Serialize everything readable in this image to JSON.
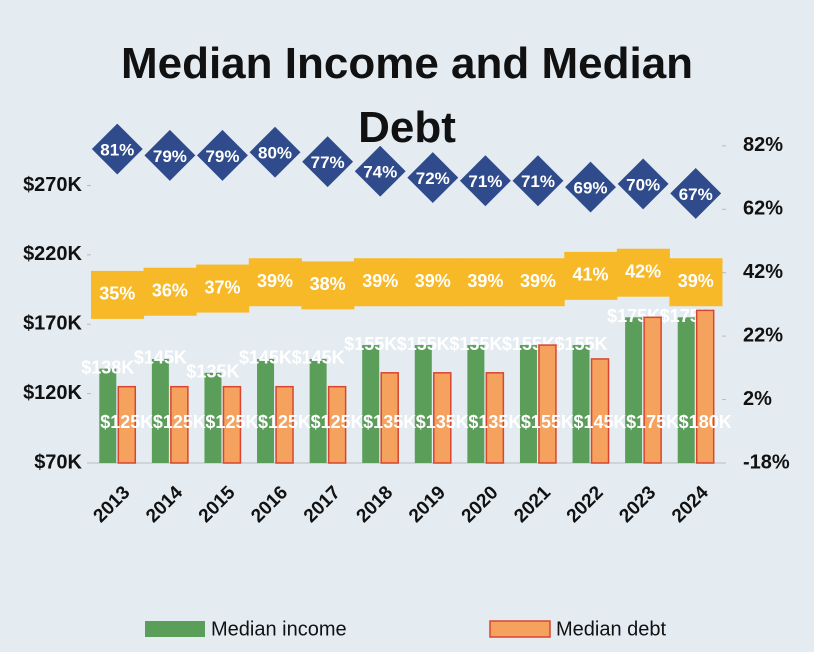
{
  "chart_data": {
    "type": "bar",
    "title": "Median Income and Median Debt",
    "categories": [
      "2013",
      "2014",
      "2015",
      "2016",
      "2017",
      "2018",
      "2019",
      "2020",
      "2021",
      "2022",
      "2023",
      "2024"
    ],
    "series": [
      {
        "name": "Median income",
        "color": "#5a9e5a",
        "values": [
          138000,
          145000,
          135000,
          145000,
          145000,
          155000,
          155000,
          155000,
          155000,
          155000,
          175000,
          175000
        ],
        "value_labels": [
          "$138K",
          "$145K",
          "$135K",
          "$145K",
          "$145K",
          "$155K",
          "$155K",
          "$155K",
          "$155K",
          "$155K",
          "$175K",
          "$175K"
        ]
      },
      {
        "name": "Median debt",
        "color": "#f4a25e",
        "values": [
          125000,
          125000,
          125000,
          125000,
          125000,
          135000,
          135000,
          135000,
          155000,
          145000,
          175000,
          180000
        ],
        "value_labels": [
          "$125K",
          "$125K",
          "$125K",
          "$125K",
          "$125K",
          "$135K",
          "$135K",
          "$135K",
          "$155K",
          "$145K",
          "$175K",
          "$180K"
        ]
      },
      {
        "color": "#2f4b8c",
        "axis": "y2",
        "marker": "diamond",
        "values": [
          81,
          79,
          79,
          80,
          77,
          74,
          72,
          71,
          71,
          69,
          70,
          67
        ],
        "value_labels": [
          "81%",
          "79%",
          "79%",
          "80%",
          "77%",
          "74%",
          "72%",
          "71%",
          "71%",
          "69%",
          "70%",
          "67%"
        ]
      },
      {
        "color": "#f7b928",
        "axis": "y2",
        "marker": "band",
        "values": [
          35,
          36,
          37,
          39,
          38,
          39,
          39,
          39,
          39,
          41,
          42,
          39
        ],
        "value_labels": [
          "35%",
          "36%",
          "37%",
          "39%",
          "38%",
          "39%",
          "39%",
          "39%",
          "39%",
          "41%",
          "42%",
          "39%"
        ]
      }
    ],
    "ylim": [
      70000,
      310000
    ],
    "yticks": [
      {
        "value": 70000,
        "label": "$70K"
      },
      {
        "value": 120000,
        "label": "$120K"
      },
      {
        "value": 170000,
        "label": "$170K"
      },
      {
        "value": 220000,
        "label": "$220K"
      },
      {
        "value": 270000,
        "label": "$270K"
      }
    ],
    "y2lim": [
      -18,
      87
    ],
    "y2ticks": [
      {
        "value": -18,
        "label": "-18%"
      },
      {
        "value": 2,
        "label": "2%"
      },
      {
        "value": 22,
        "label": "22%"
      },
      {
        "value": 42,
        "label": "42%"
      },
      {
        "value": 62,
        "label": "62%"
      },
      {
        "value": 82,
        "label": "82%"
      }
    ],
    "legend": "bottom"
  }
}
